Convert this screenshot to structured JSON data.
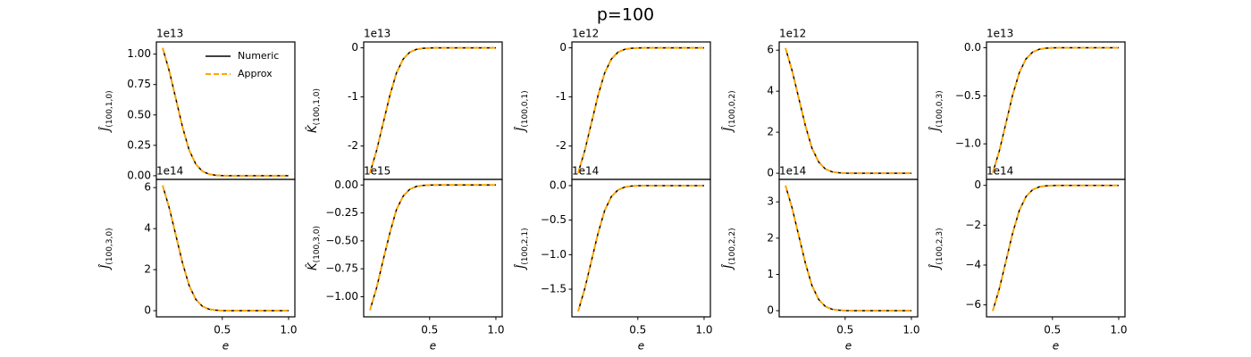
{
  "title": "p=100",
  "chart_data": [
    {
      "type": "line",
      "offset": "1e13",
      "ylabel": "Ĵ",
      "ylabel_sub": "(100,1,0)",
      "legend": "upper right",
      "x": [
        0.05,
        0.1,
        0.15,
        0.2,
        0.25,
        0.3,
        0.35,
        0.4,
        0.45,
        0.5,
        0.55,
        0.6,
        0.65,
        0.7,
        0.75,
        0.8,
        0.85,
        0.9,
        0.95,
        1.0
      ],
      "xlim": [
        0.0025,
        1.0475
      ],
      "ylim": [
        -0.03,
        1.1
      ],
      "yticks": [
        {
          "value": 0,
          "label": "0.00"
        },
        {
          "value": 0.25,
          "label": "0.25"
        },
        {
          "value": 0.5,
          "label": "0.50"
        },
        {
          "value": 0.75,
          "label": "0.75"
        },
        {
          "value": 1,
          "label": "1.00"
        }
      ],
      "series": [
        {
          "name": "Numeric",
          "color": "#000000",
          "linestyle": "solid",
          "values": [
            1.05,
            0.86,
            0.63,
            0.4,
            0.21,
            0.095,
            0.037,
            0.013,
            0.004,
            0.001,
            0,
            0,
            0,
            0,
            0,
            0,
            0,
            0,
            0,
            0
          ]
        },
        {
          "name": "Approx",
          "color": "#ffa500",
          "linestyle": "dashed",
          "values": [
            1.05,
            0.86,
            0.63,
            0.4,
            0.21,
            0.095,
            0.037,
            0.013,
            0.004,
            0.001,
            0,
            0,
            0,
            0,
            0,
            0,
            0,
            0,
            0,
            0
          ]
        }
      ]
    },
    {
      "type": "line",
      "offset": "1e13",
      "ylabel": "K̂",
      "ylabel_sub": "(100,1,0)",
      "x": [
        0.05,
        0.1,
        0.15,
        0.2,
        0.25,
        0.3,
        0.35,
        0.4,
        0.45,
        0.5,
        0.55,
        0.6,
        0.65,
        0.7,
        0.75,
        0.8,
        0.85,
        0.9,
        0.95,
        1.0
      ],
      "xlim": [
        0.0025,
        1.0475
      ],
      "ylim": [
        -2.68,
        0.12
      ],
      "yticks": [
        -2,
        -1,
        0
      ],
      "series": [
        {
          "color": "#000000",
          "linestyle": "solid",
          "values": [
            -2.55,
            -2.09,
            -1.53,
            -0.97,
            -0.51,
            -0.23,
            -0.089,
            -0.031,
            -0.01,
            -0.003,
            0,
            0,
            0,
            0,
            0,
            0,
            0,
            0,
            0,
            0
          ]
        },
        {
          "color": "#ffa500",
          "linestyle": "dashed",
          "values": [
            -2.55,
            -2.09,
            -1.53,
            -0.97,
            -0.51,
            -0.23,
            -0.089,
            -0.031,
            -0.01,
            -0.003,
            0,
            0,
            0,
            0,
            0,
            0,
            0,
            0,
            0,
            0
          ]
        }
      ]
    },
    {
      "type": "line",
      "offset": "1e12",
      "ylabel": "Ĵ",
      "ylabel_sub": "(100,0,1)",
      "x": [
        0.05,
        0.1,
        0.15,
        0.2,
        0.25,
        0.3,
        0.35,
        0.4,
        0.45,
        0.5,
        0.55,
        0.6,
        0.65,
        0.7,
        0.75,
        0.8,
        0.85,
        0.9,
        0.95,
        1.0
      ],
      "xlim": [
        0.0025,
        1.0475
      ],
      "ylim": [
        -2.68,
        0.12
      ],
      "yticks": [
        -2,
        -1,
        0
      ],
      "series": [
        {
          "color": "#000000",
          "linestyle": "solid",
          "values": [
            -2.55,
            -2.09,
            -1.53,
            -0.97,
            -0.51,
            -0.23,
            -0.089,
            -0.031,
            -0.01,
            -0.003,
            0,
            0,
            0,
            0,
            0,
            0,
            0,
            0,
            0,
            0
          ]
        },
        {
          "color": "#ffa500",
          "linestyle": "dashed",
          "values": [
            -2.55,
            -2.09,
            -1.53,
            -0.97,
            -0.51,
            -0.23,
            -0.089,
            -0.031,
            -0.01,
            -0.003,
            0,
            0,
            0,
            0,
            0,
            0,
            0,
            0,
            0,
            0
          ]
        }
      ]
    },
    {
      "type": "line",
      "offset": "1e12",
      "ylabel": "Ĵ",
      "ylabel_sub": "(100,0,2)",
      "x": [
        0.05,
        0.1,
        0.15,
        0.2,
        0.25,
        0.3,
        0.35,
        0.4,
        0.45,
        0.5,
        0.55,
        0.6,
        0.65,
        0.7,
        0.75,
        0.8,
        0.85,
        0.9,
        0.95,
        1.0
      ],
      "xlim": [
        0.0025,
        1.0475
      ],
      "ylim": [
        -0.3,
        6.4
      ],
      "yticks": [
        0,
        2,
        4,
        6
      ],
      "series": [
        {
          "color": "#000000",
          "linestyle": "solid",
          "values": [
            6.1,
            5.0,
            3.66,
            2.32,
            1.22,
            0.55,
            0.21,
            0.073,
            0.024,
            0.006,
            0,
            0,
            0,
            0,
            0,
            0,
            0,
            0,
            0,
            0
          ]
        },
        {
          "color": "#ffa500",
          "linestyle": "dashed",
          "values": [
            6.1,
            5.0,
            3.66,
            2.32,
            1.22,
            0.55,
            0.21,
            0.073,
            0.024,
            0.006,
            0,
            0,
            0,
            0,
            0,
            0,
            0,
            0,
            0,
            0
          ]
        }
      ]
    },
    {
      "type": "line",
      "offset": "1e13",
      "ylabel": "Ĵ",
      "ylabel_sub": "(100,0,3)",
      "x": [
        0.05,
        0.1,
        0.15,
        0.2,
        0.25,
        0.3,
        0.35,
        0.4,
        0.45,
        0.5,
        0.55,
        0.6,
        0.65,
        0.7,
        0.75,
        0.8,
        0.85,
        0.9,
        0.95,
        1.0
      ],
      "xlim": [
        0.0025,
        1.0475
      ],
      "ylim": [
        -1.37,
        0.06
      ],
      "yticks": [
        {
          "value": -1,
          "label": "−1.0"
        },
        {
          "value": -0.5,
          "label": "−0.5"
        },
        {
          "value": 0,
          "label": "0.0"
        }
      ],
      "series": [
        {
          "color": "#000000",
          "linestyle": "solid",
          "values": [
            -1.3,
            -1.07,
            -0.78,
            -0.49,
            -0.26,
            -0.117,
            -0.046,
            -0.016,
            -0.005,
            -0.001,
            0,
            0,
            0,
            0,
            0,
            0,
            0,
            0,
            0,
            0
          ]
        },
        {
          "color": "#ffa500",
          "linestyle": "dashed",
          "values": [
            -1.3,
            -1.07,
            -0.78,
            -0.49,
            -0.26,
            -0.117,
            -0.046,
            -0.016,
            -0.005,
            -0.001,
            0,
            0,
            0,
            0,
            0,
            0,
            0,
            0,
            0,
            0
          ]
        }
      ]
    },
    {
      "type": "line",
      "offset": "1e14",
      "ylabel": "Ĵ",
      "ylabel_sub": "(100,3,0)",
      "xlabel": "e",
      "x": [
        0.05,
        0.1,
        0.15,
        0.2,
        0.25,
        0.3,
        0.35,
        0.4,
        0.45,
        0.5,
        0.55,
        0.6,
        0.65,
        0.7,
        0.75,
        0.8,
        0.85,
        0.9,
        0.95,
        1.0
      ],
      "xlim": [
        0.0025,
        1.0475
      ],
      "xticks": [
        0.5,
        {
          "value": 1,
          "label": "1.0"
        }
      ],
      "ylim": [
        -0.3,
        6.4
      ],
      "yticks": [
        0,
        2,
        4,
        6
      ],
      "series": [
        {
          "color": "#000000",
          "linestyle": "solid",
          "values": [
            6.1,
            5.0,
            3.66,
            2.32,
            1.22,
            0.55,
            0.21,
            0.073,
            0.024,
            0.006,
            0,
            0,
            0,
            0,
            0,
            0,
            0,
            0,
            0,
            0
          ]
        },
        {
          "color": "#ffa500",
          "linestyle": "dashed",
          "values": [
            6.1,
            5.0,
            3.66,
            2.32,
            1.22,
            0.55,
            0.21,
            0.073,
            0.024,
            0.006,
            0,
            0,
            0,
            0,
            0,
            0,
            0,
            0,
            0,
            0
          ]
        }
      ]
    },
    {
      "type": "line",
      "offset": "1e15",
      "ylabel": "K̂",
      "ylabel_sub": "(100,3,0)",
      "xlabel": "e",
      "x": [
        0.05,
        0.1,
        0.15,
        0.2,
        0.25,
        0.3,
        0.35,
        0.4,
        0.45,
        0.5,
        0.55,
        0.6,
        0.65,
        0.7,
        0.75,
        0.8,
        0.85,
        0.9,
        0.95,
        1.0
      ],
      "xlim": [
        0.0025,
        1.0475
      ],
      "xticks": [
        0.5,
        {
          "value": 1,
          "label": "1.0"
        }
      ],
      "ylim": [
        -1.18,
        0.05
      ],
      "yticks": [
        {
          "value": -1,
          "label": "−1.00"
        },
        {
          "value": -0.75,
          "label": "−0.75"
        },
        {
          "value": -0.5,
          "label": "−0.50"
        },
        {
          "value": -0.25,
          "label": "−0.25"
        },
        {
          "value": 0,
          "label": "0.00"
        }
      ],
      "series": [
        {
          "color": "#000000",
          "linestyle": "solid",
          "values": [
            -1.12,
            -0.92,
            -0.67,
            -0.43,
            -0.22,
            -0.1,
            -0.039,
            -0.013,
            -0.004,
            -0.001,
            0,
            0,
            0,
            0,
            0,
            0,
            0,
            0,
            0,
            0
          ]
        },
        {
          "color": "#ffa500",
          "linestyle": "dashed",
          "values": [
            -1.12,
            -0.92,
            -0.67,
            -0.43,
            -0.22,
            -0.1,
            -0.039,
            -0.013,
            -0.004,
            -0.001,
            0,
            0,
            0,
            0,
            0,
            0,
            0,
            0,
            0,
            0
          ]
        }
      ]
    },
    {
      "type": "line",
      "offset": "1e14",
      "ylabel": "Ĵ",
      "ylabel_sub": "(100,2,1)",
      "xlabel": "e",
      "x": [
        0.05,
        0.1,
        0.15,
        0.2,
        0.25,
        0.3,
        0.35,
        0.4,
        0.45,
        0.5,
        0.55,
        0.6,
        0.65,
        0.7,
        0.75,
        0.8,
        0.85,
        0.9,
        0.95,
        1.0
      ],
      "xlim": [
        0.0025,
        1.0475
      ],
      "xticks": [
        0.5,
        {
          "value": 1,
          "label": "1.0"
        }
      ],
      "ylim": [
        -1.9,
        0.09
      ],
      "yticks": [
        {
          "value": -1.5,
          "label": "−1.5"
        },
        {
          "value": -1,
          "label": "−1.0"
        },
        {
          "value": -0.5,
          "label": "−0.5"
        },
        {
          "value": 0,
          "label": "0.0"
        }
      ],
      "series": [
        {
          "color": "#000000",
          "linestyle": "solid",
          "values": [
            -1.82,
            -1.49,
            -1.09,
            -0.69,
            -0.36,
            -0.16,
            -0.064,
            -0.022,
            -0.007,
            -0.002,
            0,
            0,
            0,
            0,
            0,
            0,
            0,
            0,
            0,
            0
          ]
        },
        {
          "color": "#ffa500",
          "linestyle": "dashed",
          "values": [
            -1.82,
            -1.49,
            -1.09,
            -0.69,
            -0.36,
            -0.16,
            -0.064,
            -0.022,
            -0.007,
            -0.002,
            0,
            0,
            0,
            0,
            0,
            0,
            0,
            0,
            0,
            0
          ]
        }
      ]
    },
    {
      "type": "line",
      "offset": "1e14",
      "ylabel": "Ĵ",
      "ylabel_sub": "(100,2,2)",
      "xlabel": "e",
      "x": [
        0.05,
        0.1,
        0.15,
        0.2,
        0.25,
        0.3,
        0.35,
        0.4,
        0.45,
        0.5,
        0.55,
        0.6,
        0.65,
        0.7,
        0.75,
        0.8,
        0.85,
        0.9,
        0.95,
        1.0
      ],
      "xlim": [
        0.0025,
        1.0475
      ],
      "xticks": [
        0.5,
        {
          "value": 1,
          "label": "1.0"
        }
      ],
      "ylim": [
        -0.17,
        3.62
      ],
      "yticks": [
        0,
        1,
        2,
        3
      ],
      "series": [
        {
          "color": "#000000",
          "linestyle": "solid",
          "values": [
            3.45,
            2.83,
            2.07,
            1.31,
            0.69,
            0.31,
            0.12,
            0.041,
            0.014,
            0.003,
            0,
            0,
            0,
            0,
            0,
            0,
            0,
            0,
            0,
            0
          ]
        },
        {
          "color": "#ffa500",
          "linestyle": "dashed",
          "values": [
            3.45,
            2.83,
            2.07,
            1.31,
            0.69,
            0.31,
            0.12,
            0.041,
            0.014,
            0.003,
            0,
            0,
            0,
            0,
            0,
            0,
            0,
            0,
            0,
            0
          ]
        }
      ]
    },
    {
      "type": "line",
      "offset": "1e14",
      "ylabel": "Ĵ",
      "ylabel_sub": "(100,2,3)",
      "xlabel": "e",
      "x": [
        0.05,
        0.1,
        0.15,
        0.2,
        0.25,
        0.3,
        0.35,
        0.4,
        0.45,
        0.5,
        0.55,
        0.6,
        0.65,
        0.7,
        0.75,
        0.8,
        0.85,
        0.9,
        0.95,
        1.0
      ],
      "xlim": [
        0.0025,
        1.0475
      ],
      "xticks": [
        0.5,
        {
          "value": 1,
          "label": "1.0"
        }
      ],
      "ylim": [
        -6.6,
        0.3
      ],
      "yticks": [
        {
          "value": -6,
          "label": "−6"
        },
        {
          "value": -4,
          "label": "−4"
        },
        {
          "value": -2,
          "label": "−2"
        },
        0
      ],
      "series": [
        {
          "color": "#000000",
          "linestyle": "solid",
          "values": [
            -6.3,
            -5.17,
            -3.78,
            -2.39,
            -1.26,
            -0.57,
            -0.22,
            -0.076,
            -0.025,
            -0.006,
            0,
            0,
            0,
            0,
            0,
            0,
            0,
            0,
            0,
            0
          ]
        },
        {
          "color": "#ffa500",
          "linestyle": "dashed",
          "values": [
            -6.3,
            -5.17,
            -3.78,
            -2.39,
            -1.26,
            -0.57,
            -0.22,
            -0.076,
            -0.025,
            -0.006,
            0,
            0,
            0,
            0,
            0,
            0,
            0,
            0,
            0,
            0
          ]
        }
      ]
    }
  ]
}
